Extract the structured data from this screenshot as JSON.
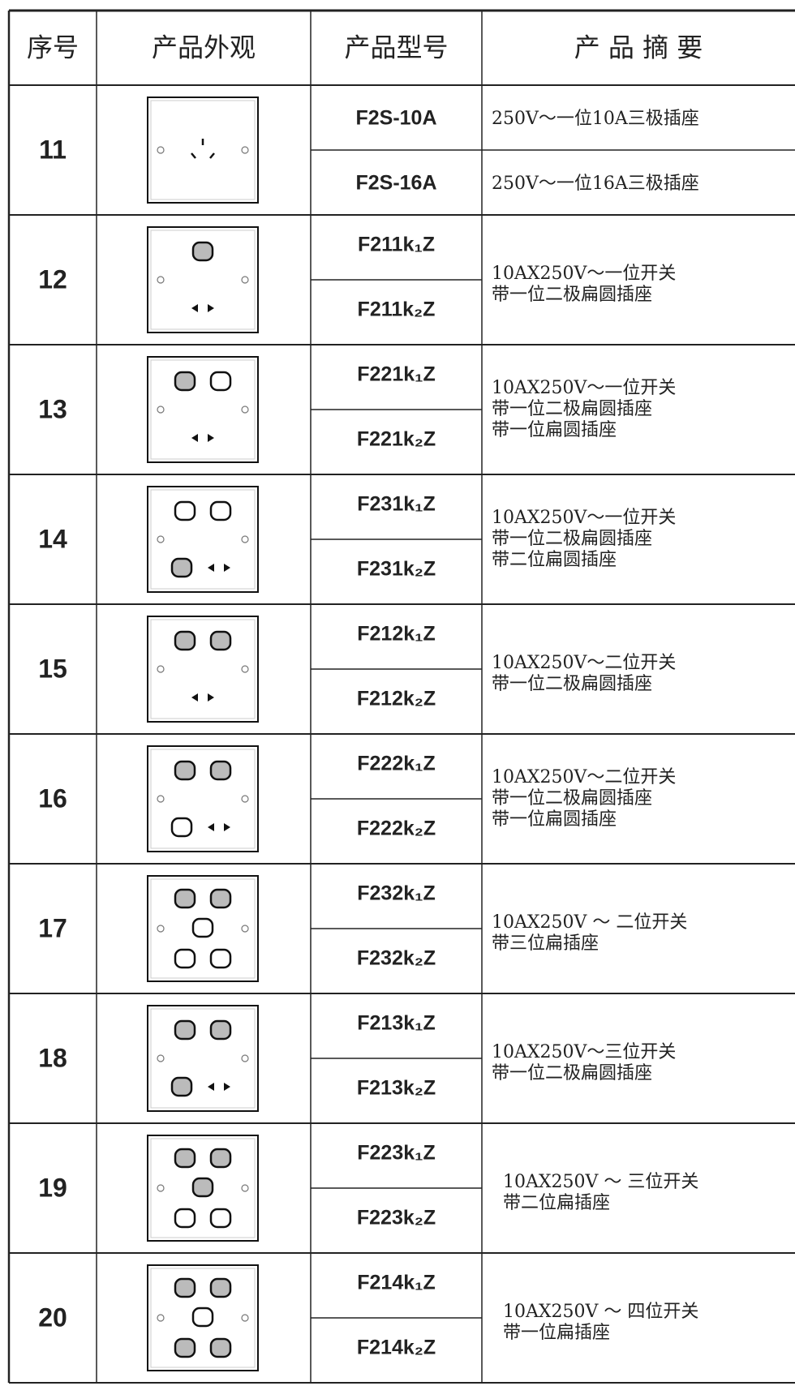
{
  "table": {
    "header": [
      "序号",
      "产品外观",
      "产品型号",
      "产 品 摘 要"
    ],
    "rows": [
      {
        "number": "11",
        "models": [
          "F2S-10A",
          "F2S-16A"
        ],
        "model_summaries": [
          "250V～一位10A三极插座",
          "250V～一位16A三极插座"
        ]
      },
      {
        "number": "12",
        "models": [
          "F211k₁Z",
          "F211k₂Z"
        ],
        "summary": [
          "10AX250V～一位开关",
          "带一位二极扁圆插座"
        ]
      },
      {
        "number": "13",
        "models": [
          "F221k₁Z",
          "F221k₂Z"
        ],
        "summary": [
          "10AX250V～一位开关",
          "带一位二极扁圆插座",
          "带一位扁圆插座"
        ]
      },
      {
        "number": "14",
        "models": [
          "F231k₁Z",
          "F231k₂Z"
        ],
        "summary": [
          "10AX250V～一位开关",
          "带一位二极扁圆插座",
          "带二位扁圆插座"
        ]
      },
      {
        "number": "15",
        "models": [
          "F212k₁Z",
          "F212k₂Z"
        ],
        "summary": [
          "10AX250V～二位开关",
          "带一位二极扁圆插座"
        ]
      },
      {
        "number": "16",
        "models": [
          "F222k₁Z",
          "F222k₂Z"
        ],
        "summary": [
          "10AX250V～二位开关",
          "带一位二极扁圆插座",
          "带一位扁圆插座"
        ]
      },
      {
        "number": "17",
        "models": [
          "F232k₁Z",
          "F232k₂Z"
        ],
        "summary": [
          "10AX250V ～ 二位开关",
          "带三位扁插座"
        ]
      },
      {
        "number": "18",
        "models": [
          "F213k₁Z",
          "F213k₂Z"
        ],
        "summary": [
          "10AX250V～三位开关",
          "带一位二极扁圆插座"
        ]
      },
      {
        "number": "19",
        "models": [
          "F223k₁Z",
          "F223k₂Z"
        ],
        "summary": [
          "10AX250V ～ 三位开关",
          "带二位扁插座"
        ]
      },
      {
        "number": "20",
        "models": [
          "F214k₁Z",
          "F214k₂Z"
        ],
        "summary": [
          "10AX250V ～ 四位开关",
          "带一位扁插座"
        ]
      }
    ]
  }
}
